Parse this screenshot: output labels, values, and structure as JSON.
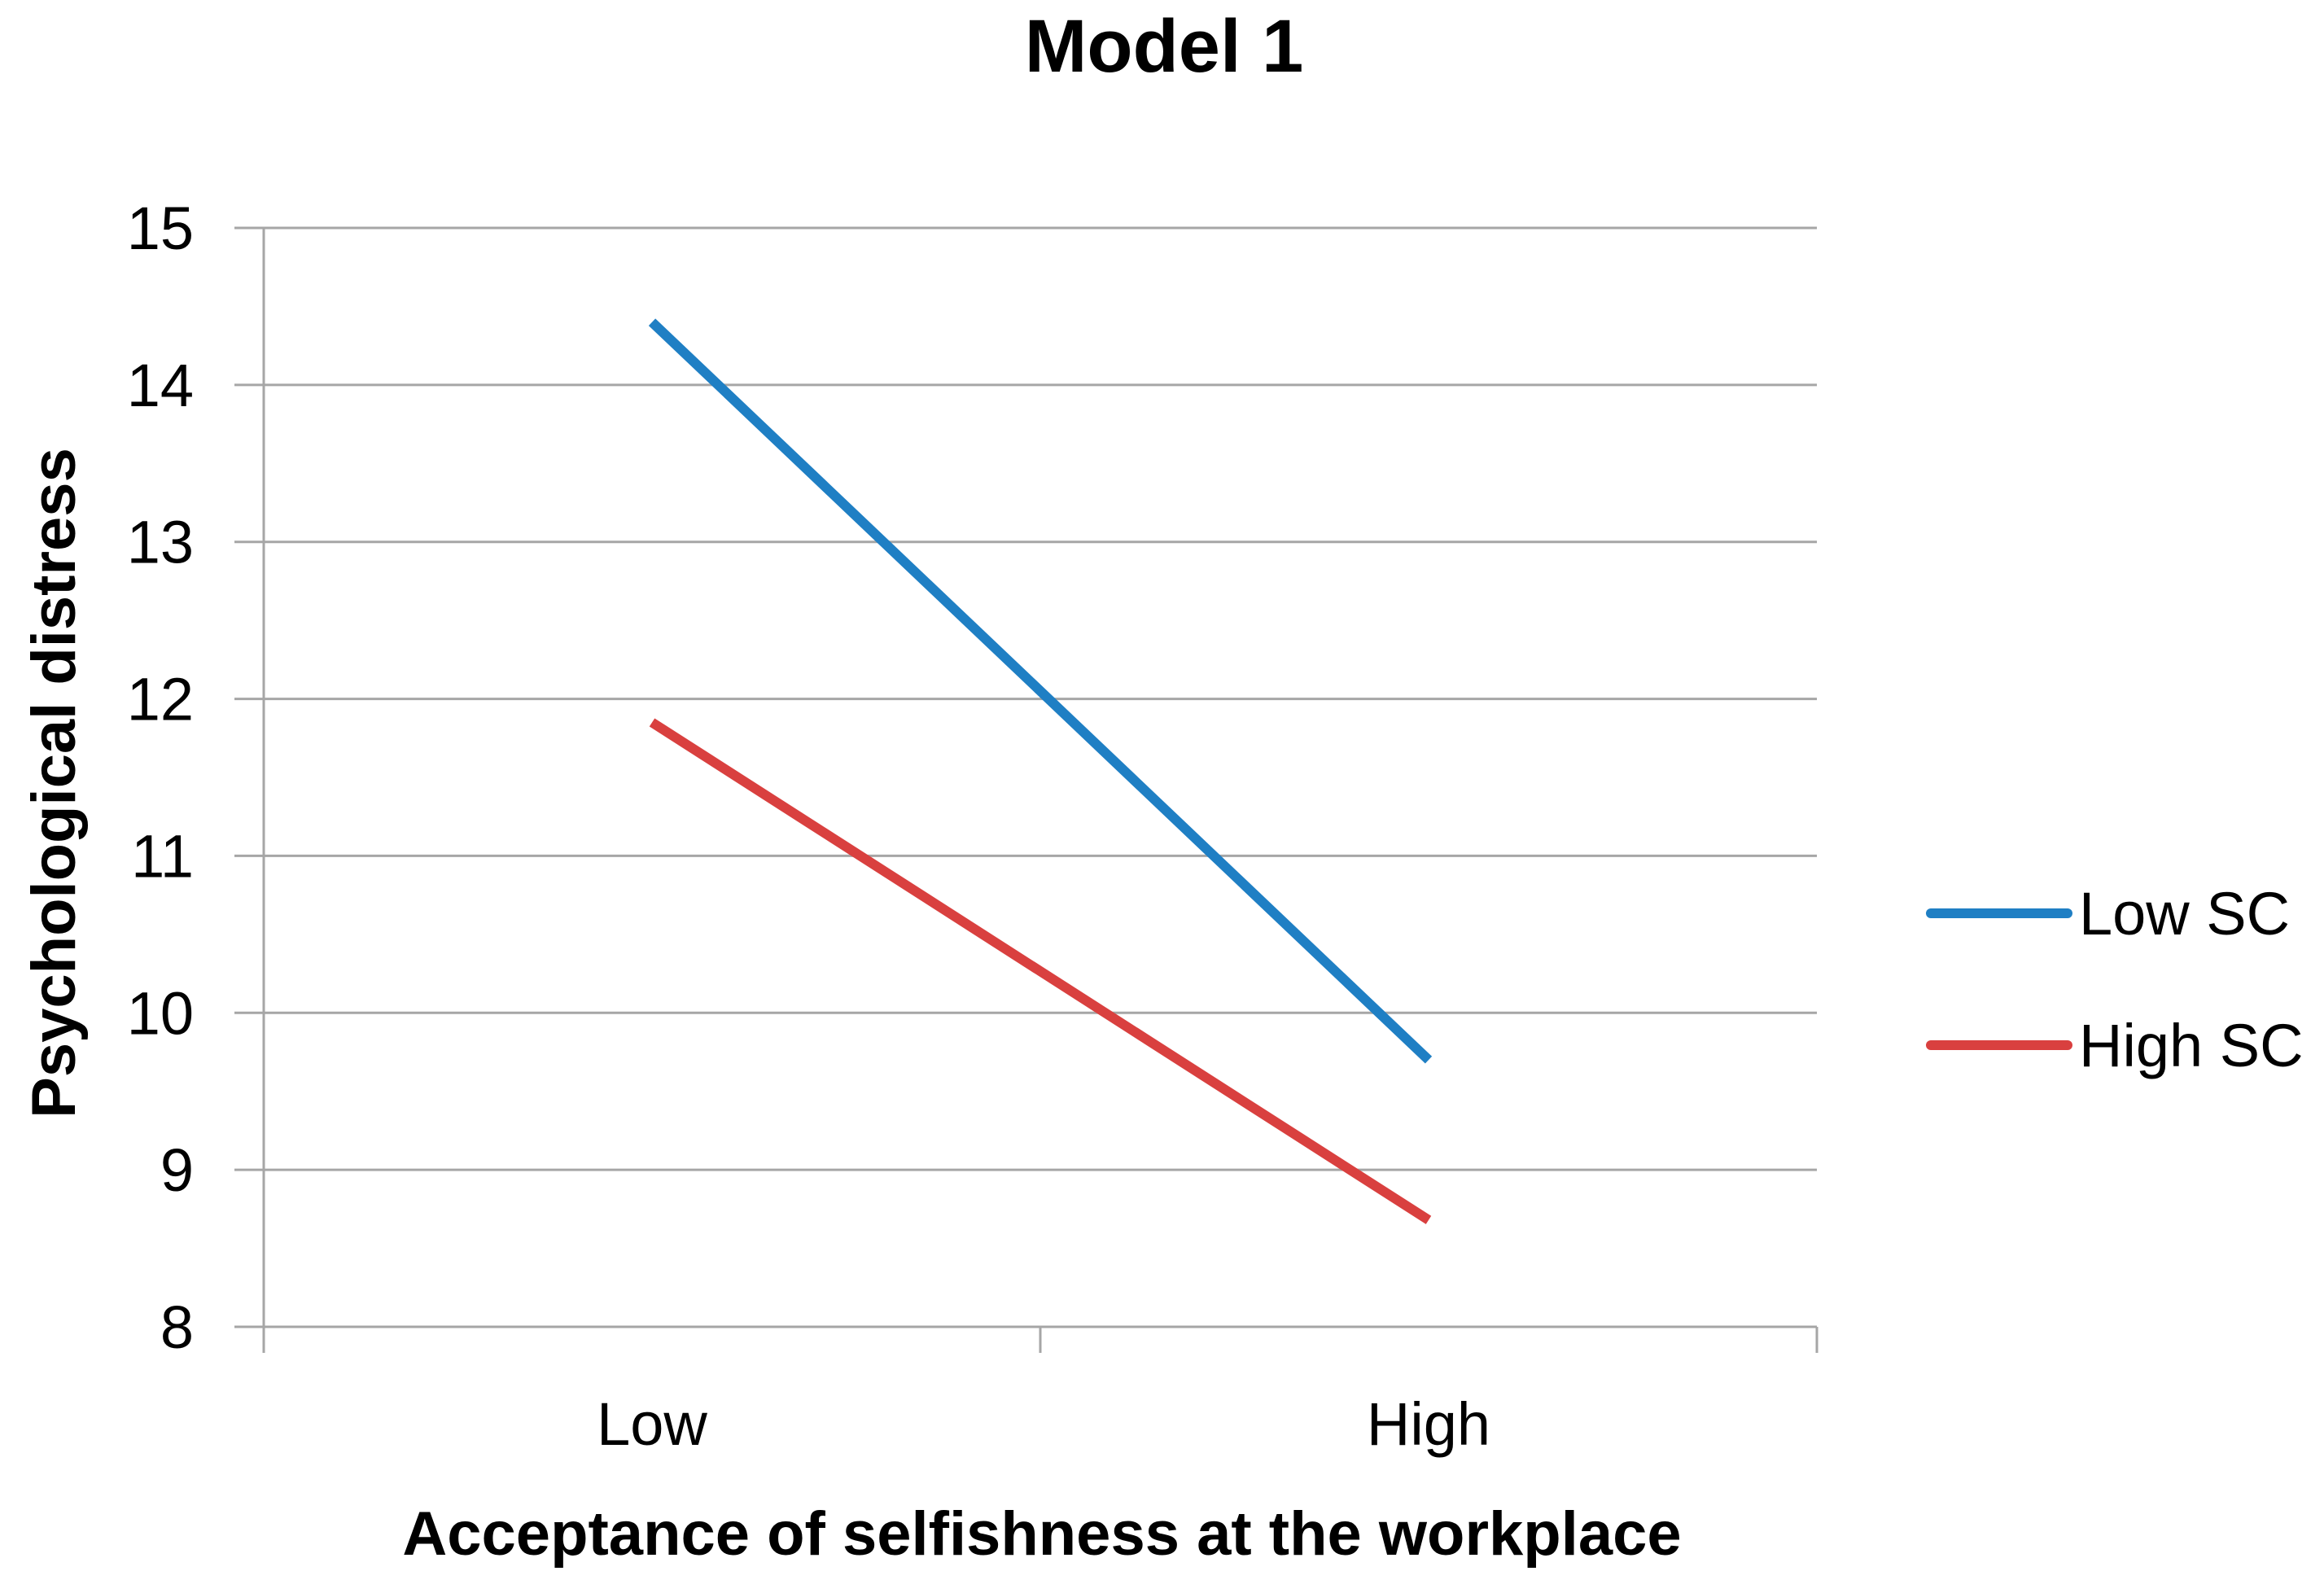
{
  "chart_data": {
    "type": "line",
    "title": "Model 1",
    "xlabel": "Acceptance of selfishness at the workplace",
    "ylabel": "Psychological distress",
    "categories": [
      "Low",
      "High"
    ],
    "ylim": [
      8,
      15
    ],
    "yticks": [
      "8",
      "9",
      "10",
      "11",
      "12",
      "13",
      "14",
      "15"
    ],
    "grid": true,
    "legend_position": "right",
    "series": [
      {
        "name": "Low SC",
        "color": "#1f7fc4",
        "values": [
          14.4,
          9.7
        ]
      },
      {
        "name": "High SC",
        "color": "#d9403f",
        "values": [
          11.85,
          8.68
        ]
      }
    ]
  }
}
